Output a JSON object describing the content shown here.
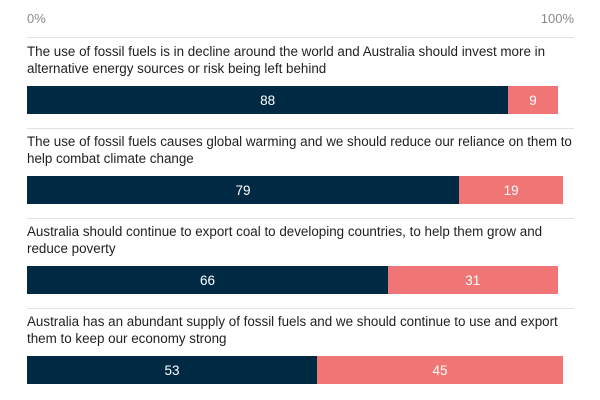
{
  "axis": {
    "min_label": "0%",
    "max_label": "100%"
  },
  "colors": {
    "agree": "#002a43",
    "disagree": "#f07575"
  },
  "chart_data": {
    "type": "bar",
    "orientation": "horizontal",
    "stacked": true,
    "xlim": [
      0,
      100
    ],
    "categories": [
      "The use of fossil fuels is in decline around the world and Australia should invest more in alternative energy sources or risk being left behind",
      "The use of fossil fuels causes global warming and we should reduce our reliance on them to help combat climate change",
      "Australia should continue to export coal to developing countries, to help them grow and reduce poverty",
      "Australia has an abundant supply of fossil fuels and we should continue to use and export them to keep our economy strong"
    ],
    "series": [
      {
        "values": [
          88,
          79,
          66,
          53
        ]
      },
      {
        "values": [
          9,
          19,
          31,
          45
        ]
      }
    ]
  }
}
